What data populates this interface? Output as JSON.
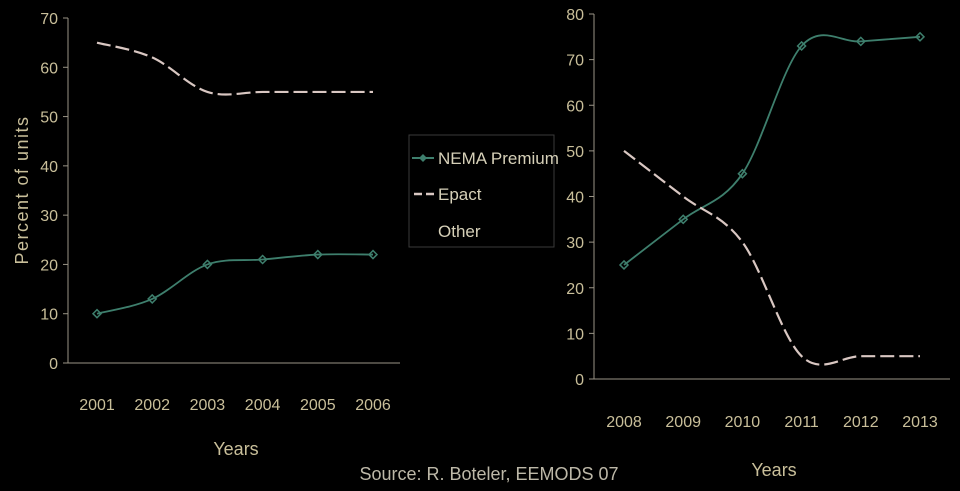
{
  "colors": {
    "background": "#000000",
    "axis": "#9a9486",
    "tick": "#c9bf9a",
    "nema": "#3e7f6d",
    "epact": "#d9c7c2",
    "legend_border": "#3a3a3a"
  },
  "source": "Source: R. Boteler, EEMODS 07",
  "legend": {
    "items": [
      {
        "label": "NEMA Premium",
        "marker": "diamond-line-icon"
      },
      {
        "label": "Epact",
        "marker": "dashed-line-icon"
      },
      {
        "label": "Other",
        "marker": "no-line"
      }
    ]
  },
  "chart_data": [
    {
      "type": "line",
      "title": "",
      "xlabel": "Years",
      "ylabel": "Percent of units",
      "ylim": [
        0,
        70
      ],
      "yticks": [
        0,
        10,
        20,
        30,
        40,
        50,
        60,
        70
      ],
      "categories": [
        "2001",
        "2002",
        "2003",
        "2004",
        "2005",
        "2006"
      ],
      "series": [
        {
          "name": "NEMA Premium",
          "values": [
            10,
            13,
            20,
            21,
            22,
            22
          ]
        },
        {
          "name": "Epact",
          "values": [
            65,
            62,
            55,
            55,
            55,
            55
          ]
        }
      ]
    },
    {
      "type": "line",
      "title": "",
      "xlabel": "Years",
      "ylabel": "",
      "ylim": [
        0,
        80
      ],
      "yticks": [
        0,
        10,
        20,
        30,
        40,
        50,
        60,
        70,
        80
      ],
      "categories": [
        "2008",
        "2009",
        "2010",
        "2011",
        "2012",
        "2013"
      ],
      "series": [
        {
          "name": "NEMA Premium",
          "values": [
            25,
            35,
            45,
            73,
            74,
            75
          ]
        },
        {
          "name": "Epact",
          "values": [
            50,
            40,
            30,
            5,
            5,
            5
          ]
        }
      ]
    }
  ]
}
